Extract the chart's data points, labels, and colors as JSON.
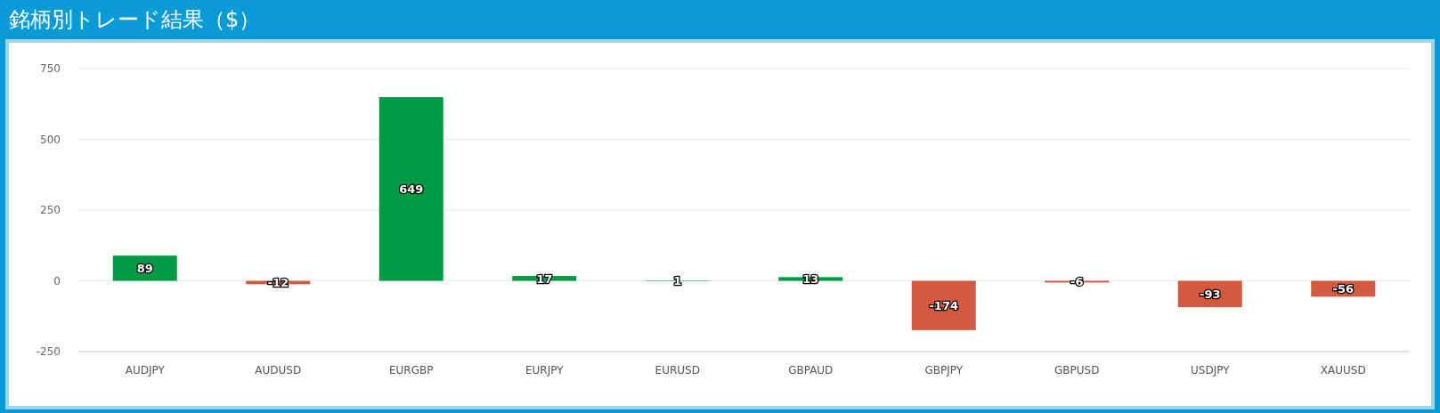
{
  "chart_data": {
    "type": "bar",
    "title": "銘柄別トレード結果（$）",
    "categories": [
      "AUDJPY",
      "AUDUSD",
      "EURGBP",
      "EURJPY",
      "EURUSD",
      "GBPAUD",
      "GBPJPY",
      "GBPUSD",
      "USDJPY",
      "XAUUSD"
    ],
    "values": [
      89,
      -12,
      649,
      17,
      1,
      13,
      -174,
      -6,
      -93,
      -56
    ],
    "colors": [
      "#009944",
      "#d35a40",
      "#009944",
      "#009944",
      "#009944",
      "#009944",
      "#d35a40",
      "#d35a40",
      "#d35a40",
      "#d35a40"
    ],
    "ylim": [
      -250,
      750
    ],
    "yticks": [
      -250,
      0,
      250,
      500,
      750
    ],
    "grid": "y",
    "data_labels": true
  }
}
